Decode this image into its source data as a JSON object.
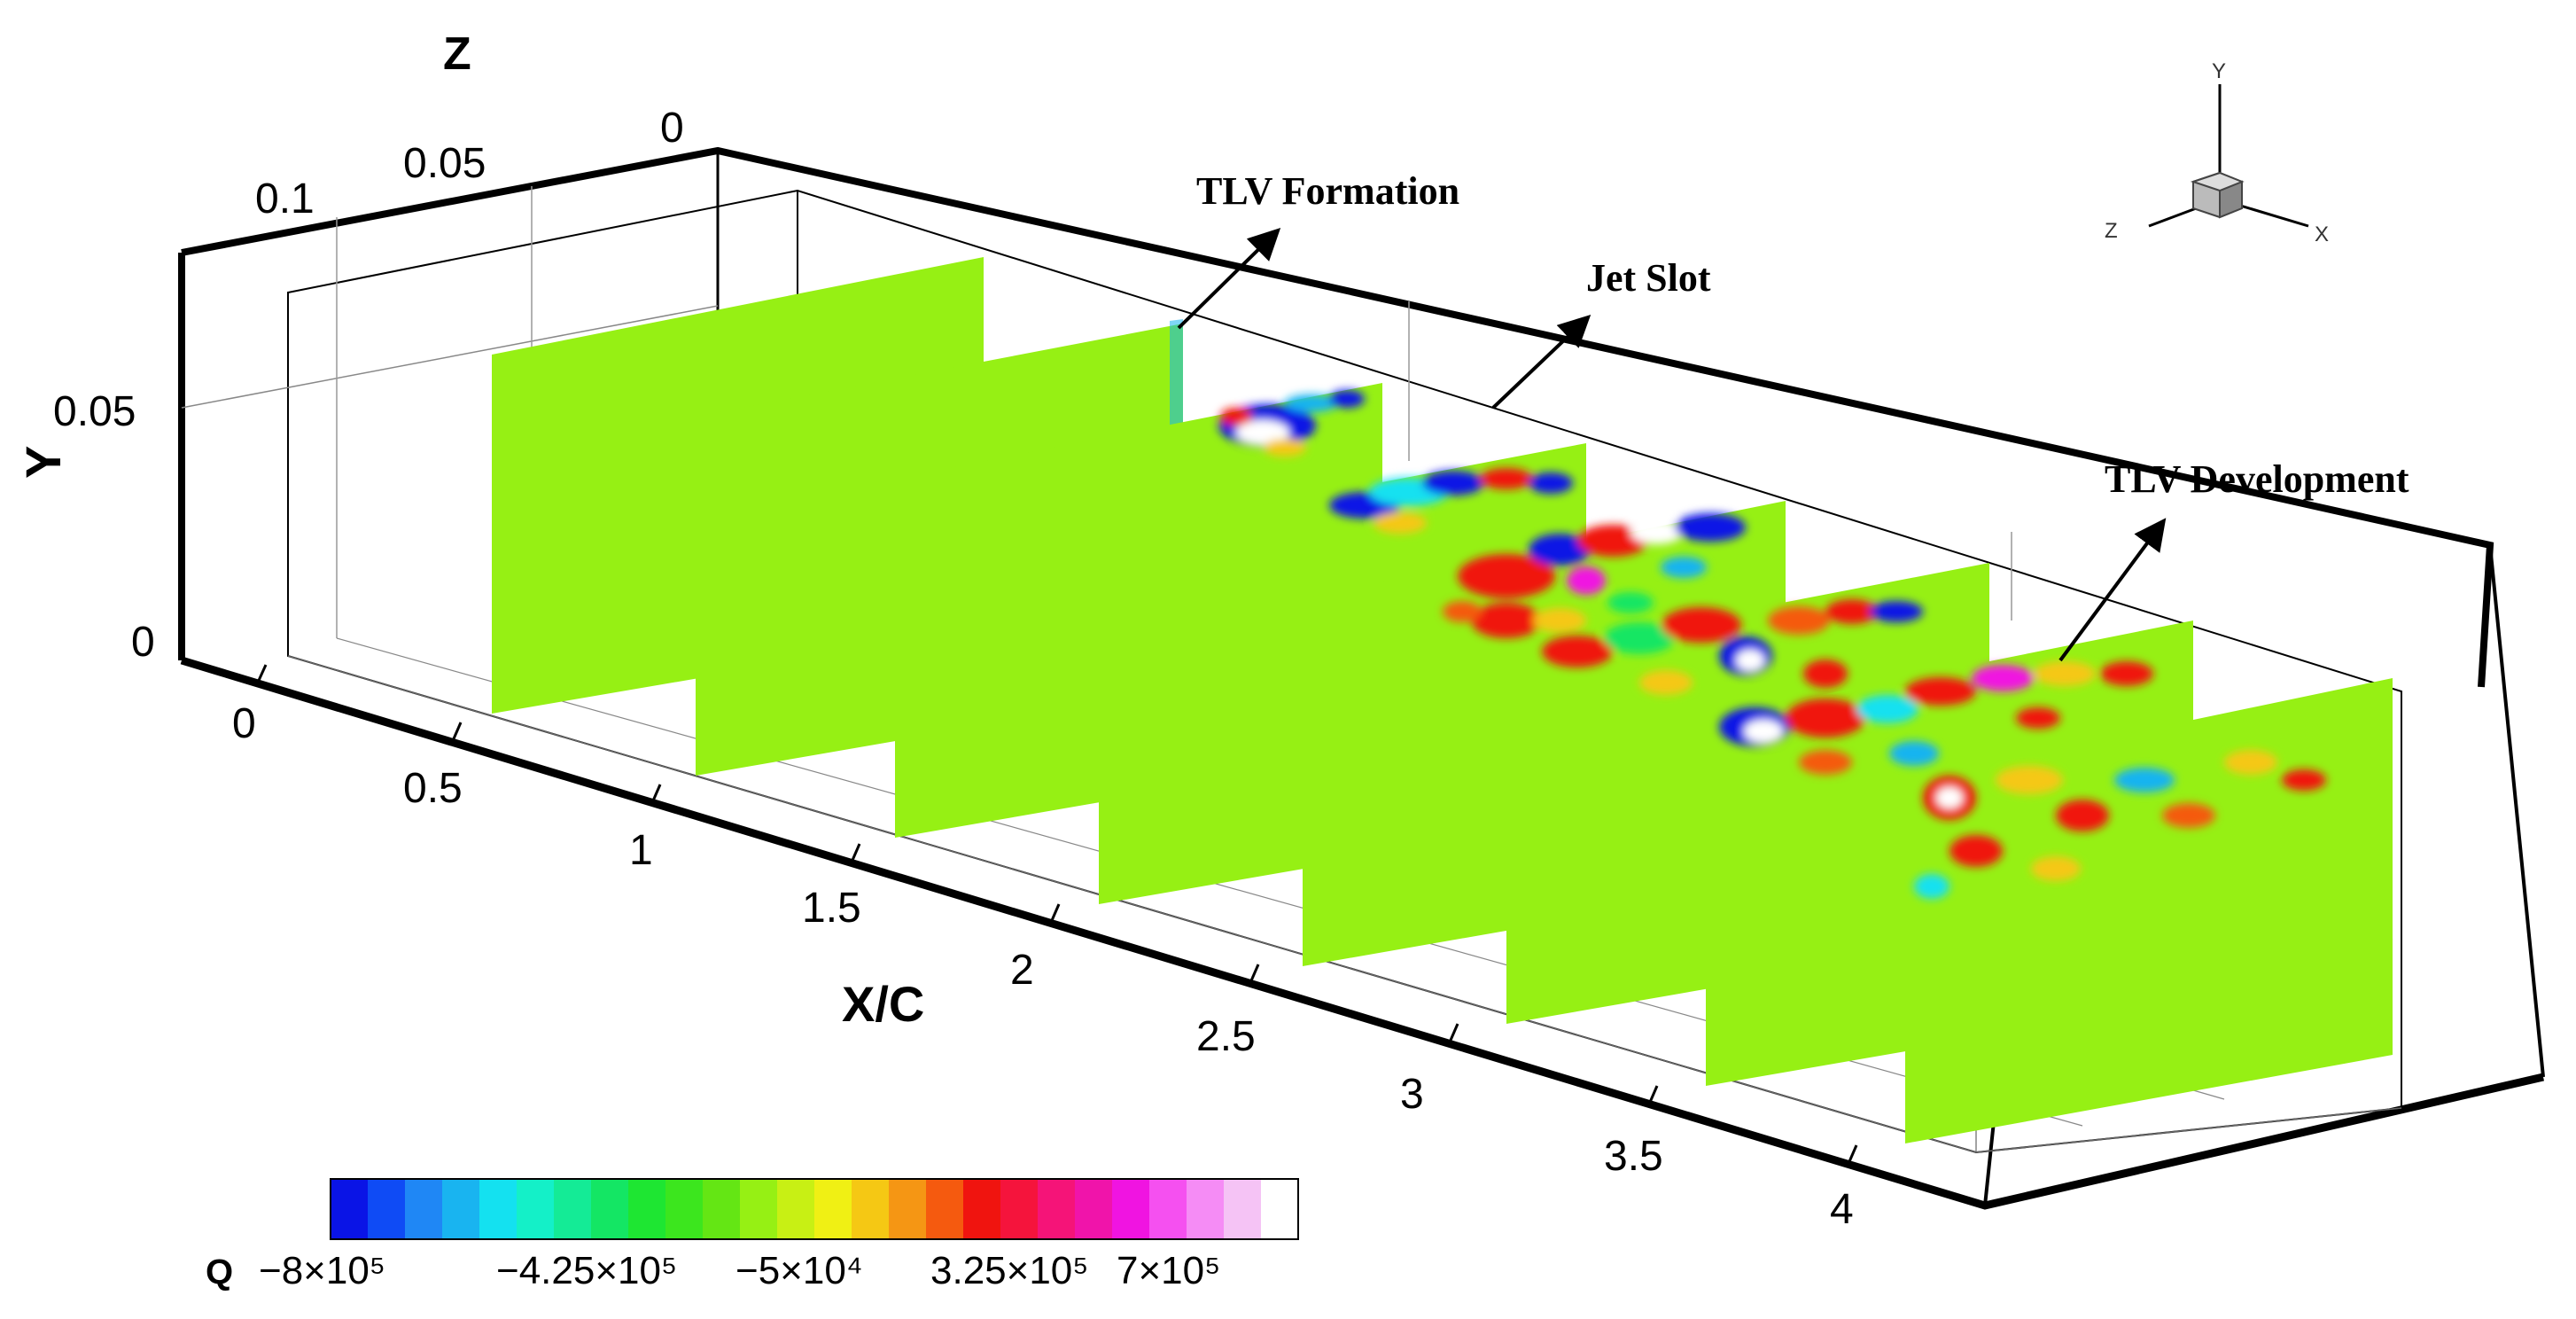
{
  "axes": {
    "z_label": "Z",
    "z_ticks": [
      "0.1",
      "0.05",
      "0"
    ],
    "y_label": "Y",
    "y_ticks": [
      "0.05",
      "0"
    ],
    "x_label": "X/C",
    "x_ticks": [
      "0",
      "0.5",
      "1",
      "1.5",
      "2",
      "2.5",
      "3",
      "3.5",
      "4"
    ]
  },
  "annotations": {
    "tlv_formation": "TLV Formation",
    "jet_slot": "Jet Slot",
    "tlv_development": "TLV Development"
  },
  "triad": {
    "y": "Y",
    "z": "Z",
    "x": "X"
  },
  "colorbar": {
    "variable": "Q",
    "tick_labels": [
      "−8×10⁵",
      "−4.25×10⁵",
      "−5×10⁴",
      "3.25×10⁵",
      "7×10⁵"
    ],
    "colors": [
      "#0a14e6",
      "#0f4bf5",
      "#1f87f5",
      "#19b4f0",
      "#14e1f0",
      "#14f0c8",
      "#14eb96",
      "#14e664",
      "#1ee632",
      "#3ce61e",
      "#64e614",
      "#96f014",
      "#c8f014",
      "#f0f014",
      "#f5c814",
      "#f59614",
      "#f55a0f",
      "#f0140f",
      "#f5143c",
      "#f51478",
      "#f014aa",
      "#f014e1",
      "#f550f0",
      "#f58cf5",
      "#f5c3f5",
      "#ffffff"
    ],
    "background_green": "#96f014"
  }
}
